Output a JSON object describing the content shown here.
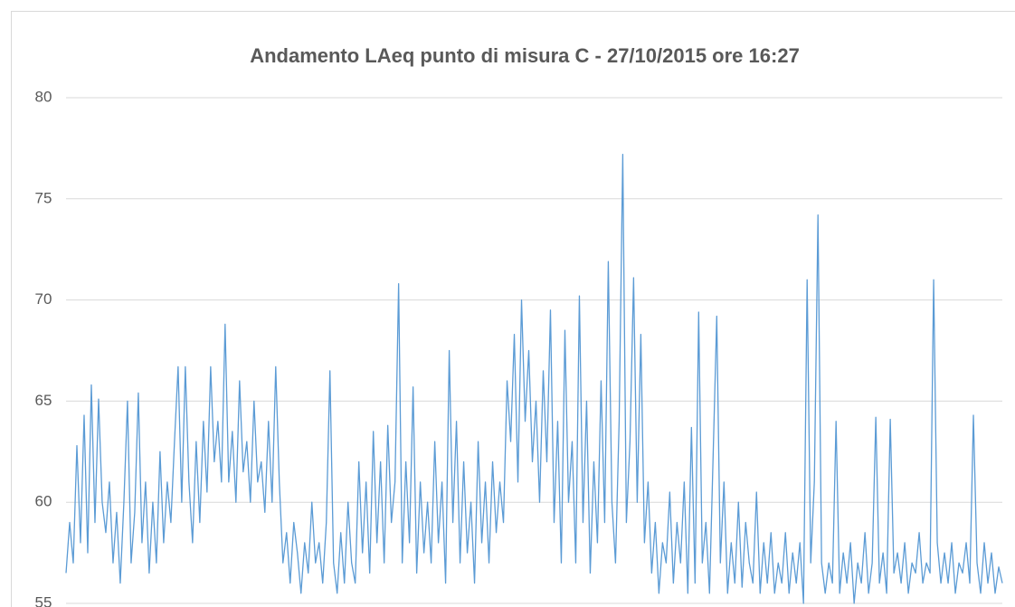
{
  "chart_data": {
    "type": "line",
    "title": "Andamento LAeq punto di misura C - 27/10/2015 ore 16:27",
    "ylim": [
      55,
      80
    ],
    "yticks": [
      55,
      60,
      65,
      70,
      75,
      80
    ],
    "grid": true,
    "series": [
      {
        "name": "LAeq",
        "color": "#5b9bd5",
        "values": [
          56.5,
          59,
          57,
          62.8,
          58,
          64.3,
          57.5,
          65.8,
          59,
          65.1,
          60,
          58.5,
          61,
          57,
          59.5,
          56,
          60,
          65,
          57,
          59.5,
          65.4,
          58,
          61,
          56.5,
          60,
          57,
          62.5,
          58,
          61,
          59,
          63,
          66.7,
          60,
          66.7,
          61,
          58,
          63,
          59,
          64,
          60.5,
          66.7,
          62,
          64,
          61,
          68.8,
          61,
          63.5,
          60,
          66,
          61.5,
          63,
          60,
          65,
          61,
          62,
          59.5,
          64,
          60,
          66.7,
          61,
          57,
          58.5,
          56,
          59,
          57.5,
          55.5,
          58,
          56.5,
          60,
          57,
          58,
          56,
          59,
          66.5,
          57,
          55.5,
          58.5,
          56,
          60,
          57,
          56,
          62,
          57.5,
          61,
          56.5,
          63.5,
          58,
          62,
          57,
          63.8,
          59,
          61,
          70.8,
          57,
          62,
          58,
          65.7,
          56.5,
          61,
          57.5,
          60,
          57,
          63,
          58,
          61,
          56,
          67.5,
          59,
          64,
          57,
          62,
          57.5,
          60,
          56,
          63,
          58,
          61,
          57,
          62,
          58.5,
          61,
          59,
          66,
          63,
          68.3,
          61,
          70,
          64,
          67.5,
          62,
          65,
          60,
          66.5,
          62,
          69.5,
          59,
          64,
          57,
          68.5,
          60,
          63,
          57,
          70.2,
          59,
          65,
          56.5,
          62,
          58,
          66,
          59,
          71.9,
          60,
          57,
          64,
          77.2,
          59,
          63,
          71.1,
          60,
          68.3,
          58,
          61,
          56.5,
          59,
          55.5,
          58,
          57,
          60.5,
          56,
          59,
          57,
          61,
          55.5,
          63.7,
          56,
          69.4,
          57,
          59,
          55.5,
          62.3,
          69.2,
          57,
          61,
          55.5,
          58,
          56,
          60,
          55.8,
          59,
          57,
          56,
          60.5,
          55.5,
          58,
          56,
          58.5,
          55.5,
          57,
          56,
          58.5,
          55.5,
          57.5,
          56,
          58,
          55,
          71,
          57,
          61,
          74.2,
          57,
          55.5,
          57,
          56,
          64,
          55.5,
          57.5,
          56,
          58,
          55,
          57,
          56,
          58.5,
          55.5,
          57,
          64.2,
          56,
          57.5,
          55.5,
          64.1,
          56.5,
          57.5,
          56,
          58,
          55.5,
          57,
          56.5,
          58.5,
          56,
          57,
          56.5,
          71,
          58,
          56,
          57.5,
          56,
          58,
          55.5,
          57,
          56.5,
          58,
          56,
          64.3,
          57,
          55.5,
          58,
          56,
          57.5,
          55.5,
          56.8,
          56
        ]
      }
    ]
  }
}
